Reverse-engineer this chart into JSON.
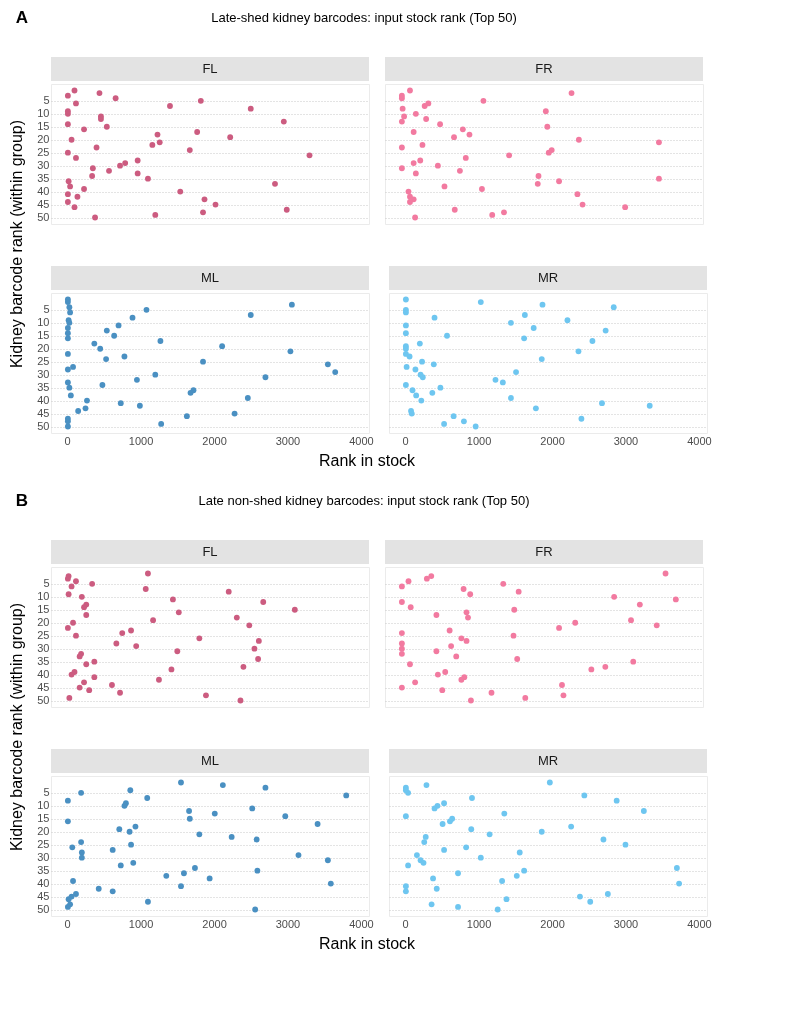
{
  "chart_data": [
    {
      "type": "scatter",
      "title": "FL",
      "annotations": [
        "A",
        "Late‑shed kidney barcodes: input stock rank (Top 50)"
      ],
      "ylabel": "Kidney barcode rank (within group)",
      "xlim": [
        -220,
        4110
      ],
      "ylim": [
        52.5,
        -1.5
      ],
      "xticks": [
        0,
        1000,
        2000,
        3000,
        4000
      ],
      "yticks": [
        5,
        10,
        15,
        20,
        25,
        30,
        35,
        40,
        45,
        50
      ],
      "grid": "y",
      "marker": "circle",
      "tick_labels": "y",
      "series": [
        {
          "color": "#cc5c80",
          "x": [
            100,
            440,
            10,
            660,
            1820,
            120,
            1400,
            2500,
            10,
            10,
            460,
            460,
            2950,
            10,
            540,
            230,
            1770,
            1230,
            2220,
            60,
            1260,
            1160,
            400,
            1670,
            10,
            3300,
            120,
            960,
            790,
            720,
            350,
            570,
            960,
            340,
            1100,
            20,
            2830,
            40,
            230,
            1540,
            10,
            140,
            1870,
            10,
            2020,
            100,
            2990,
            1850,
            1200,
            380
          ],
          "values": [
            1,
            2,
            3,
            4,
            5,
            6,
            7,
            8,
            9,
            10,
            11,
            12,
            13,
            14,
            15,
            16,
            17,
            18,
            19,
            20,
            21,
            22,
            23,
            24,
            25,
            26,
            27,
            28,
            29,
            30,
            31,
            32,
            33,
            34,
            35,
            36,
            37,
            38,
            39,
            40,
            41,
            42,
            43,
            44,
            45,
            46,
            47,
            48,
            49,
            50
          ]
        }
      ]
    },
    {
      "type": "scatter",
      "title": "FR",
      "xlim": [
        -220,
        4110
      ],
      "ylim": [
        52.5,
        -1.5
      ],
      "xticks": [
        0,
        1000,
        2000,
        3000,
        4000
      ],
      "yticks": [
        5,
        10,
        15,
        20,
        25,
        30,
        35,
        40,
        45,
        50
      ],
      "grid": "y",
      "marker": "circle",
      "tick_labels": false,
      "series": [
        {
          "color": "#f27aa0",
          "x": [
            120,
            2320,
            10,
            10,
            1120,
            370,
            320,
            20,
            1970,
            200,
            40,
            340,
            10,
            530,
            1990,
            840,
            170,
            930,
            720,
            2420,
            3510,
            290,
            10,
            2050,
            2010,
            1470,
            880,
            260,
            170,
            500,
            10,
            800,
            200,
            1870,
            3510,
            2150,
            1860,
            590,
            1100,
            100,
            2400,
            120,
            170,
            120,
            2470,
            3050,
            730,
            1400,
            1240,
            190
          ],
          "values": [
            1,
            2,
            3,
            4,
            5,
            6,
            7,
            8,
            9,
            10,
            11,
            12,
            13,
            14,
            15,
            16,
            17,
            18,
            19,
            20,
            21,
            22,
            23,
            24,
            25,
            26,
            27,
            28,
            29,
            30,
            31,
            32,
            33,
            34,
            35,
            36,
            37,
            38,
            39,
            40,
            41,
            42,
            43,
            44,
            45,
            46,
            47,
            48,
            49,
            50
          ]
        }
      ]
    },
    {
      "type": "scatter",
      "title": "ML",
      "xlabel": "Rank in stock",
      "xlim": [
        -220,
        4110
      ],
      "ylim": [
        52.5,
        -1.5
      ],
      "xticks": [
        0,
        1000,
        2000,
        3000,
        4000
      ],
      "yticks": [
        5,
        10,
        15,
        20,
        25,
        30,
        35,
        40,
        45,
        50
      ],
      "grid": "y",
      "marker": "circle",
      "series": [
        {
          "color": "#4a90c2",
          "x": [
            10,
            10,
            3060,
            30,
            1080,
            40,
            2500,
            890,
            20,
            30,
            700,
            10,
            540,
            10,
            640,
            10,
            1270,
            370,
            2110,
            450,
            3040,
            10,
            780,
            530,
            1850,
            3550,
            80,
            10,
            3650,
            1200,
            2700,
            950,
            10,
            480,
            30,
            1720,
            1680,
            50,
            2460,
            270,
            730,
            990,
            250,
            150,
            2280,
            1630,
            10,
            10,
            1280,
            10
          ],
          "values": [
            1,
            2,
            3,
            4,
            5,
            6,
            7,
            8,
            9,
            10,
            11,
            12,
            13,
            14,
            15,
            16,
            17,
            18,
            19,
            20,
            21,
            22,
            23,
            24,
            25,
            26,
            27,
            28,
            29,
            30,
            31,
            32,
            33,
            34,
            35,
            36,
            37,
            38,
            39,
            40,
            41,
            42,
            43,
            44,
            45,
            46,
            47,
            48,
            49,
            50
          ]
        }
      ]
    },
    {
      "type": "scatter",
      "title": "MR",
      "xlim": [
        -220,
        4110
      ],
      "ylim": [
        52.5,
        -1.5
      ],
      "xticks": [
        0,
        1000,
        2000,
        3000,
        4000
      ],
      "yticks": [
        5,
        10,
        15,
        20,
        25,
        30,
        35,
        40,
        45,
        50
      ],
      "grid": "y",
      "marker": "circle",
      "tick_labels": "x",
      "series": [
        {
          "color": "#6ec6f0",
          "x": [
            10,
            1030,
            1870,
            2840,
            10,
            10,
            1630,
            400,
            2210,
            1440,
            10,
            1750,
            2730,
            10,
            570,
            1620,
            2550,
            200,
            10,
            10,
            2360,
            10,
            60,
            1860,
            230,
            390,
            20,
            140,
            1510,
            210,
            240,
            1230,
            1330,
            10,
            480,
            100,
            370,
            150,
            1440,
            220,
            2680,
            3330,
            1780,
            80,
            90,
            660,
            2400,
            800,
            530,
            960
          ],
          "values": [
            1,
            2,
            3,
            4,
            5,
            6,
            7,
            8,
            9,
            10,
            11,
            12,
            13,
            14,
            15,
            16,
            17,
            18,
            19,
            20,
            21,
            22,
            23,
            24,
            25,
            26,
            27,
            28,
            29,
            30,
            31,
            32,
            33,
            34,
            35,
            36,
            37,
            38,
            39,
            40,
            41,
            42,
            43,
            44,
            45,
            46,
            47,
            48,
            49,
            50
          ]
        }
      ]
    },
    {
      "type": "scatter",
      "title": "FL",
      "annotations": [
        "B",
        "Late non‑shed kidney barcodes: input stock rank (Top 50)"
      ],
      "ylabel": "Kidney barcode rank (within group)",
      "xlim": [
        -220,
        4110
      ],
      "ylim": [
        52.5,
        -1.5
      ],
      "xticks": [
        0,
        1000,
        2000,
        3000,
        4000
      ],
      "yticks": [
        5,
        10,
        15,
        20,
        25,
        30,
        35,
        40,
        45,
        50
      ],
      "grid": "y",
      "marker": "circle",
      "tick_labels": "y",
      "series": [
        {
          "color": "#cc5c80",
          "x": [
            1100,
            20,
            10,
            120,
            340,
            60,
            1070,
            2200,
            20,
            200,
            1440,
            2670,
            260,
            230,
            3100,
            1520,
            260,
            2310,
            1170,
            80,
            2480,
            10,
            870,
            750,
            120,
            1800,
            2610,
            670,
            940,
            2550,
            1500,
            190,
            170,
            2600,
            370,
            260,
            2400,
            1420,
            100,
            60,
            370,
            1250,
            230,
            610,
            170,
            300,
            720,
            1890,
            30,
            2360
          ],
          "values": [
            1,
            2,
            3,
            4,
            5,
            6,
            7,
            8,
            9,
            10,
            11,
            12,
            13,
            14,
            15,
            16,
            17,
            18,
            19,
            20,
            21,
            22,
            23,
            24,
            25,
            26,
            27,
            28,
            29,
            30,
            31,
            32,
            33,
            34,
            35,
            36,
            37,
            38,
            39,
            40,
            41,
            42,
            43,
            44,
            45,
            46,
            47,
            48,
            49,
            50
          ]
        }
      ]
    },
    {
      "type": "scatter",
      "title": "FR",
      "xlim": [
        -220,
        4110
      ],
      "ylim": [
        52.5,
        -1.5
      ],
      "xticks": [
        0,
        1000,
        2000,
        3000,
        4000
      ],
      "yticks": [
        5,
        10,
        15,
        20,
        25,
        30,
        35,
        40,
        45,
        50
      ],
      "grid": "y",
      "marker": "circle",
      "tick_labels": false,
      "series": [
        {
          "color": "#f27aa0",
          "x": [
            3600,
            410,
            350,
            100,
            1390,
            10,
            850,
            1600,
            940,
            2900,
            3740,
            10,
            3250,
            130,
            1540,
            890,
            480,
            910,
            3130,
            2370,
            3480,
            2150,
            660,
            10,
            1530,
            820,
            890,
            10,
            680,
            10,
            480,
            10,
            750,
            1580,
            3160,
            120,
            2780,
            2590,
            600,
            500,
            860,
            820,
            190,
            2190,
            10,
            560,
            1230,
            2210,
            1690,
            950
          ],
          "values": [
            1,
            2,
            3,
            4,
            5,
            6,
            7,
            8,
            9,
            10,
            11,
            12,
            13,
            14,
            15,
            16,
            17,
            18,
            19,
            20,
            21,
            22,
            23,
            24,
            25,
            26,
            27,
            28,
            29,
            30,
            31,
            32,
            33,
            34,
            35,
            36,
            37,
            38,
            39,
            40,
            41,
            42,
            43,
            44,
            45,
            46,
            47,
            48,
            49,
            50
          ]
        }
      ]
    },
    {
      "type": "scatter",
      "title": "ML",
      "xlabel": "Rank in stock",
      "xlim": [
        -220,
        4110
      ],
      "ylim": [
        52.5,
        -1.5
      ],
      "xticks": [
        0,
        1000,
        2000,
        3000,
        4000
      ],
      "yticks": [
        5,
        10,
        15,
        20,
        25,
        30,
        35,
        40,
        45,
        50
      ],
      "grid": "y",
      "marker": "circle",
      "series": [
        {
          "color": "#4a90c2",
          "x": [
            1550,
            2120,
            2700,
            860,
            190,
            3800,
            1090,
            10,
            800,
            780,
            2520,
            1660,
            2010,
            2970,
            1670,
            10,
            3410,
            930,
            710,
            850,
            1800,
            2240,
            2580,
            190,
            870,
            70,
            620,
            200,
            3150,
            200,
            3550,
            900,
            730,
            1740,
            2590,
            1590,
            1350,
            1940,
            80,
            3590,
            1550,
            430,
            620,
            120,
            60,
            20,
            1100,
            40,
            10,
            2560
          ],
          "values": [
            1,
            2,
            3,
            4,
            5,
            6,
            7,
            8,
            9,
            10,
            11,
            12,
            13,
            14,
            15,
            16,
            17,
            18,
            19,
            20,
            21,
            22,
            23,
            24,
            25,
            26,
            27,
            28,
            29,
            30,
            31,
            32,
            33,
            34,
            35,
            36,
            37,
            38,
            39,
            40,
            41,
            42,
            43,
            44,
            45,
            46,
            47,
            48,
            49,
            50
          ]
        }
      ]
    },
    {
      "type": "scatter",
      "title": "MR",
      "xlim": [
        -220,
        4110
      ],
      "ylim": [
        52.5,
        -1.5
      ],
      "xticks": [
        0,
        1000,
        2000,
        3000,
        4000
      ],
      "yticks": [
        5,
        10,
        15,
        20,
        25,
        30,
        35,
        40,
        45,
        50
      ],
      "grid": "y",
      "marker": "circle",
      "tick_labels": "x",
      "series": [
        {
          "color": "#6ec6f0",
          "x": [
            1970,
            290,
            10,
            10,
            40,
            2440,
            910,
            2880,
            530,
            440,
            400,
            3250,
            1350,
            10,
            640,
            610,
            510,
            2260,
            900,
            1860,
            1150,
            280,
            2700,
            260,
            3000,
            830,
            530,
            1560,
            160,
            1030,
            210,
            250,
            40,
            3700,
            1620,
            720,
            1520,
            380,
            1320,
            3730,
            10,
            430,
            10,
            2760,
            2380,
            1380,
            2520,
            360,
            720,
            1260
          ],
          "values": [
            1,
            2,
            3,
            4,
            5,
            6,
            7,
            8,
            9,
            10,
            11,
            12,
            13,
            14,
            15,
            16,
            17,
            18,
            19,
            20,
            21,
            22,
            23,
            24,
            25,
            26,
            27,
            28,
            29,
            30,
            31,
            32,
            33,
            34,
            35,
            36,
            37,
            38,
            39,
            40,
            41,
            42,
            43,
            44,
            45,
            46,
            47,
            48,
            49,
            50
          ]
        }
      ]
    }
  ]
}
